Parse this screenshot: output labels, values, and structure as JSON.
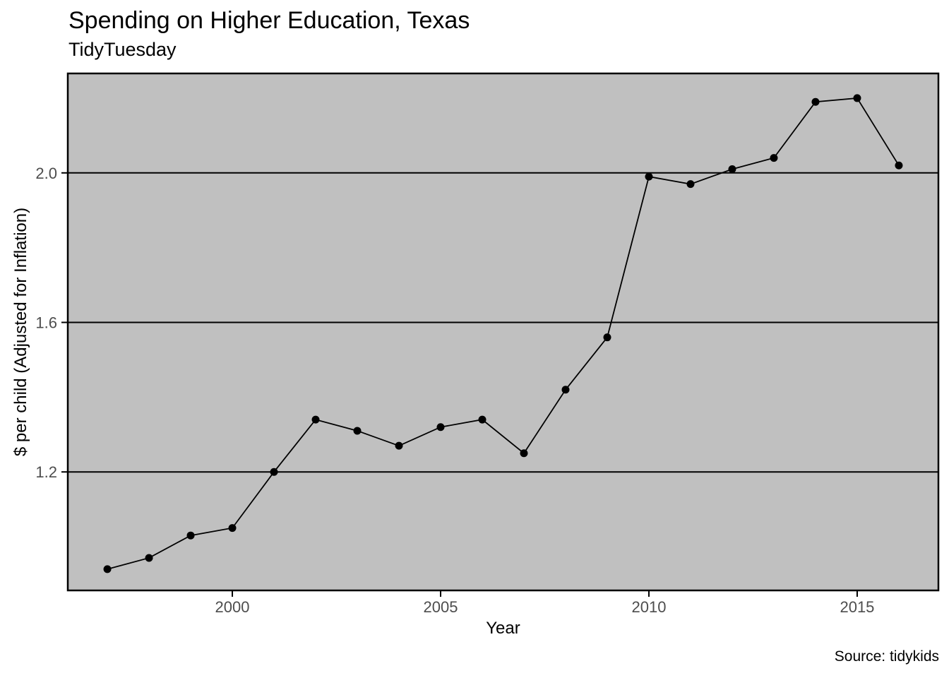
{
  "chart_data": {
    "type": "line",
    "title": "Spending on Higher Education, Texas",
    "subtitle": "TidyTuesday",
    "xlabel": "Year",
    "ylabel": "$ per child (Adjusted for Inflation)",
    "caption": "Source: tidykids",
    "x": [
      1997,
      1998,
      1999,
      2000,
      2001,
      2002,
      2003,
      2004,
      2005,
      2006,
      2007,
      2008,
      2009,
      2010,
      2011,
      2012,
      2013,
      2014,
      2015,
      2016
    ],
    "y": [
      0.94,
      0.97,
      1.03,
      1.05,
      1.2,
      1.34,
      1.31,
      1.27,
      1.32,
      1.34,
      1.25,
      1.42,
      1.56,
      1.99,
      1.97,
      2.01,
      2.04,
      2.19,
      2.2,
      2.02
    ],
    "x_ticks": {
      "values": [
        2000,
        2005,
        2010,
        2015
      ],
      "labels": [
        "2000",
        "2005",
        "2010",
        "2015"
      ]
    },
    "y_ticks": {
      "values": [
        1.2,
        1.6,
        2.0
      ],
      "labels": [
        "1.2",
        "1.6",
        "2.0"
      ]
    },
    "xlim": [
      1996.05,
      2016.95
    ],
    "ylim": [
      0.883,
      2.266
    ],
    "grid": "horizontal-major-only",
    "legend": "none",
    "marker": "filled-circle",
    "colors": {
      "panel_background": "#c0c0c0",
      "gridline": "#000000",
      "panel_border": "#000000",
      "line": "#000000",
      "point": "#000000",
      "tick_mark": "#000000",
      "axis_tick_text": "#4d4d4d",
      "title_text": "#000000",
      "page_background": "#ffffff"
    }
  }
}
